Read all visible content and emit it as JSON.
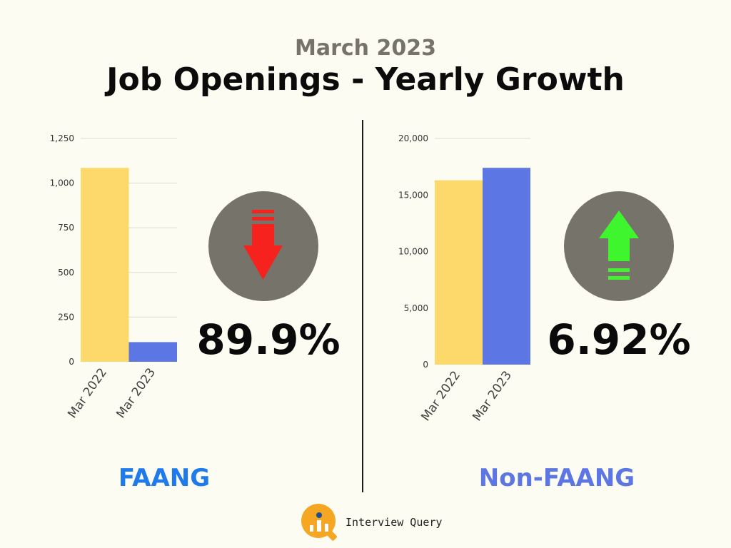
{
  "header": {
    "subtitle": "March 2023",
    "title": "Job Openings - Yearly Growth"
  },
  "brand": {
    "name": "Interview Query",
    "logo_icon": "magnifier-chart-icon",
    "color": "#f5a623"
  },
  "colors": {
    "mar2022": "#fdd86a",
    "mar2023": "#5c77e3",
    "circle": "#76736b",
    "down_arrow": "#f5221e",
    "up_arrow": "#3ef52e"
  },
  "panels": [
    {
      "label": "FAANG",
      "label_color": "#1f7aeb",
      "change": "89.9%",
      "direction": "down",
      "arrow_icon": "red-down-arrow-icon"
    },
    {
      "label": "Non-FAANG",
      "label_color": "#5c77e3",
      "change": "6.92%",
      "direction": "up",
      "arrow_icon": "green-up-arrow-icon"
    }
  ],
  "chart_data": [
    {
      "type": "bar",
      "categories": [
        "Mar 2022",
        "Mar 2023"
      ],
      "values": [
        1085,
        110
      ],
      "ylim": [
        0,
        1250
      ],
      "yticks": [
        0,
        250,
        500,
        750,
        1000,
        1250
      ],
      "ytick_labels": [
        "0",
        "250",
        "500",
        "750",
        "1,000",
        "1,250"
      ],
      "grid": true
    },
    {
      "type": "bar",
      "categories": [
        "Mar 2022",
        "Mar 2023"
      ],
      "values": [
        16300,
        17400
      ],
      "ylim": [
        0,
        20000
      ],
      "yticks": [
        0,
        5000,
        10000,
        15000,
        20000
      ],
      "ytick_labels": [
        "0",
        "5,000",
        "10,000",
        "15,000",
        "20,000"
      ],
      "grid": true
    }
  ]
}
